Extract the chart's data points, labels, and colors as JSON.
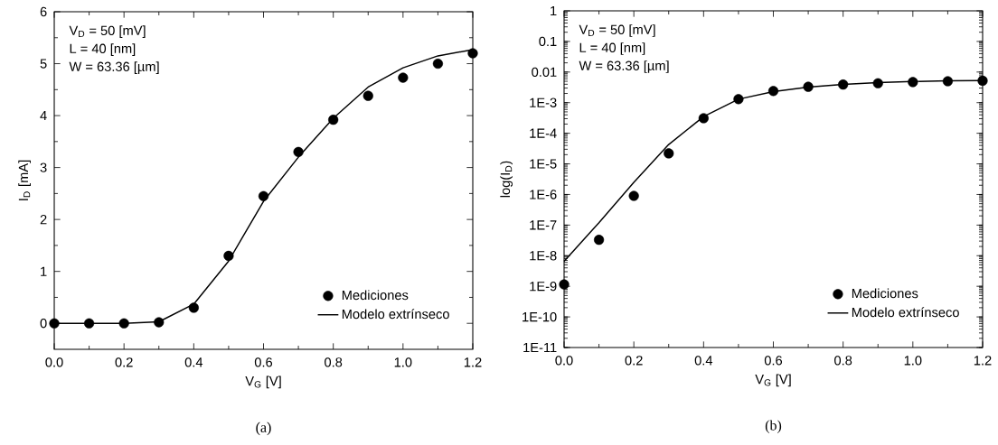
{
  "chart_data": [
    {
      "type": "line",
      "xlabel": "V$_{G}$ [V]",
      "ylabel": "I$_{D}$ [mA]",
      "annotations": [
        "V$_{D}$ = 50 [mV]",
        "L = 40 [nm]",
        "W = 63.36 [µm]",
        "(a)"
      ],
      "xlim": [
        0,
        1.2
      ],
      "ylim": [
        -0.5,
        6
      ],
      "xticks": [
        {
          "value": 0,
          "label": "0.0"
        },
        {
          "value": 0.2,
          "label": "0.2"
        },
        {
          "value": 0.4,
          "label": "0.4"
        },
        {
          "value": 0.6,
          "label": "0.6"
        },
        {
          "value": 0.8,
          "label": "0.8"
        },
        {
          "value": 1.0,
          "label": "1.0"
        },
        {
          "value": 1.2,
          "label": "1.2"
        }
      ],
      "yticks": [
        0,
        1,
        2,
        3,
        4,
        5,
        6
      ],
      "legend": "bottom right",
      "series": [
        {
          "name": "Mediciones",
          "type": "scatter",
          "marker": "circle",
          "color": "#000000",
          "x": [
            0,
            0.1,
            0.2,
            0.3,
            0.4,
            0.5,
            0.6,
            0.7,
            0.8,
            0.9,
            1.0,
            1.1,
            1.2
          ],
          "values": [
            0,
            0,
            0,
            0.02,
            0.3,
            1.3,
            2.45,
            3.3,
            3.92,
            4.38,
            4.73,
            5.0,
            5.2
          ]
        },
        {
          "name": "Modelo extrínseco",
          "type": "line",
          "color": "#000000",
          "x": [
            0,
            0.1,
            0.2,
            0.3,
            0.4,
            0.5,
            0.6,
            0.7,
            0.8,
            0.9,
            1.0,
            1.1,
            1.2
          ],
          "values": [
            0,
            0,
            0,
            0.03,
            0.37,
            1.2,
            2.35,
            3.2,
            3.95,
            4.55,
            4.92,
            5.15,
            5.27
          ]
        }
      ]
    },
    {
      "type": "line",
      "xlabel": "V$_{G}$ [V]",
      "ylabel": "log(I$_{D}$)",
      "log": true,
      "annotations": [
        "V$_{D}$ = 50 [mV]",
        "L = 40 [nm]",
        "W = 63.36 [µm]",
        "(b)"
      ],
      "xlim": [
        0,
        1.2
      ],
      "ylim": [
        1e-11,
        1
      ],
      "xticks": [
        {
          "value": 0,
          "label": "0.0"
        },
        {
          "value": 0.2,
          "label": "0.2"
        },
        {
          "value": 0.4,
          "label": "0.4"
        },
        {
          "value": 0.6,
          "label": "0.6"
        },
        {
          "value": 0.8,
          "label": "0.8"
        },
        {
          "value": 1.0,
          "label": "1.0"
        },
        {
          "value": 1.2,
          "label": "1.2"
        }
      ],
      "yticks": [
        {
          "value": 1e-11,
          "label": "1E-11"
        },
        {
          "value": 1e-10,
          "label": "1E-10"
        },
        {
          "value": 1e-09,
          "label": "1E-9"
        },
        {
          "value": 1e-08,
          "label": "1E-8"
        },
        {
          "value": 1e-07,
          "label": "1E-7"
        },
        {
          "value": 1e-06,
          "label": "1E-6"
        },
        {
          "value": 1e-05,
          "label": "1E-5"
        },
        {
          "value": 0.0001,
          "label": "1E-4"
        },
        {
          "value": 0.001,
          "label": "1E-3"
        },
        {
          "value": 0.01,
          "label": "0.01"
        },
        {
          "value": 0.1,
          "label": "0.1"
        },
        {
          "value": 1,
          "label": "1"
        }
      ],
      "legend": "bottom right",
      "series": [
        {
          "name": "Mediciones",
          "type": "scatter",
          "marker": "circle",
          "color": "#000000",
          "x": [
            0,
            0.1,
            0.2,
            0.3,
            0.4,
            0.5,
            0.6,
            0.7,
            0.8,
            0.9,
            1.0,
            1.1,
            1.2
          ],
          "values": [
            1.15e-09,
            3.3e-08,
            9e-07,
            2.2e-05,
            0.00031,
            0.0013,
            0.0024,
            0.0033,
            0.0039,
            0.0043,
            0.0047,
            0.005,
            0.0052
          ]
        },
        {
          "name": "Modelo extrínseco",
          "type": "line",
          "color": "#000000",
          "x": [
            0,
            0.1,
            0.2,
            0.3,
            0.4,
            0.5,
            0.6,
            0.7,
            0.8,
            0.9,
            1.0,
            1.1,
            1.2
          ],
          "values": [
            6.6e-09,
            1.2e-07,
            2.5e-06,
            4.3e-05,
            0.00035,
            0.0013,
            0.0023,
            0.0032,
            0.00395,
            0.00455,
            0.00492,
            0.00515,
            0.00527
          ]
        }
      ]
    }
  ]
}
